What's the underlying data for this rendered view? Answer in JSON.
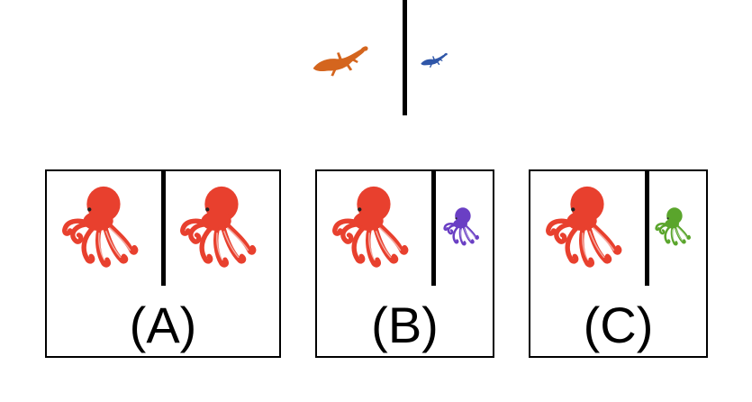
{
  "prompt": {
    "left_item": {
      "icon": "lizard-icon",
      "color": "#d4651e"
    },
    "right_item": {
      "icon": "lizard-icon",
      "color": "#2f56a8"
    }
  },
  "options": [
    {
      "label": "(A)",
      "left_item": {
        "icon": "octopus-icon",
        "color": "#e8402e"
      },
      "right_item": {
        "icon": "octopus-icon",
        "color": "#e8402e"
      }
    },
    {
      "label": "(B)",
      "left_item": {
        "icon": "octopus-icon",
        "color": "#e8402e"
      },
      "right_item": {
        "icon": "octopus-icon",
        "color": "#6a3fc4"
      }
    },
    {
      "label": "(C)",
      "left_item": {
        "icon": "octopus-icon",
        "color": "#e8402e"
      },
      "right_item": {
        "icon": "octopus-icon",
        "color": "#5aa52c"
      }
    }
  ]
}
